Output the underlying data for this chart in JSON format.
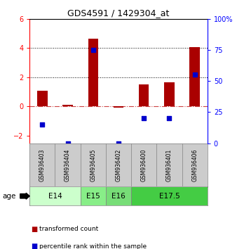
{
  "title": "GDS4591 / 1429304_at",
  "samples": [
    "GSM936403",
    "GSM936404",
    "GSM936405",
    "GSM936402",
    "GSM936400",
    "GSM936401",
    "GSM936406"
  ],
  "transformed_count": [
    1.1,
    0.1,
    4.65,
    -0.05,
    1.5,
    1.65,
    4.05
  ],
  "percentile_rank": [
    15,
    0,
    75,
    0,
    20,
    20,
    55
  ],
  "age_groups": [
    {
      "label": "E14",
      "start": 0,
      "end": 2,
      "color": "#ccffcc"
    },
    {
      "label": "E15",
      "start": 2,
      "end": 3,
      "color": "#88ee88"
    },
    {
      "label": "E16",
      "start": 3,
      "end": 4,
      "color": "#77dd77"
    },
    {
      "label": "E17.5",
      "start": 4,
      "end": 7,
      "color": "#44cc44"
    }
  ],
  "ylim_left": [
    -2.5,
    6.0
  ],
  "ylim_right": [
    0,
    100
  ],
  "yticks_left": [
    -2,
    0,
    2,
    4,
    6
  ],
  "yticks_right": [
    0,
    25,
    50,
    75,
    100
  ],
  "bar_color": "#aa0000",
  "dot_color": "#0000cc",
  "hline_color": "#cc4444",
  "dotted_line_color": "#000000",
  "bg_color": "#ffffff",
  "sample_box_color": "#cccccc",
  "age_label": "age",
  "legend_items": [
    "transformed count",
    "percentile rank within the sample"
  ]
}
